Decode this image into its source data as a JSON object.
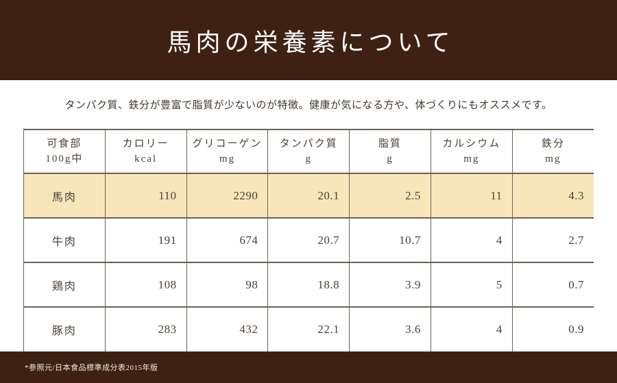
{
  "header": {
    "title": "馬肉の栄養素について"
  },
  "intro": {
    "text": "タンパク質、鉄分が豊富で脂質が少ないのが特徴。健康が気になる方や、体づくりにもオススメです。"
  },
  "table": {
    "columns": [
      {
        "label": "可食部",
        "unit": "100g中"
      },
      {
        "label": "カロリー",
        "unit": "kcal"
      },
      {
        "label": "グリコーゲン",
        "unit": "mg"
      },
      {
        "label": "タンパク質",
        "unit": "g"
      },
      {
        "label": "脂質",
        "unit": "g"
      },
      {
        "label": "カルシウム",
        "unit": "mg"
      },
      {
        "label": "鉄分",
        "unit": "mg"
      }
    ],
    "rows": [
      {
        "name": "馬肉",
        "highlight": true,
        "values": [
          "110",
          "2290",
          "20.1",
          "2.5",
          "11",
          "4.3"
        ]
      },
      {
        "name": "牛肉",
        "highlight": false,
        "values": [
          "191",
          "674",
          "20.7",
          "10.7",
          "4",
          "2.7"
        ]
      },
      {
        "name": "鶏肉",
        "highlight": false,
        "values": [
          "108",
          "98",
          "18.8",
          "3.9",
          "5",
          "0.7"
        ]
      },
      {
        "name": "豚肉",
        "highlight": false,
        "values": [
          "283",
          "432",
          "22.1",
          "3.6",
          "4",
          "0.9"
        ]
      }
    ]
  },
  "footer": {
    "source_note": "*参照元/日本食品標準成分表2015年版"
  },
  "colors": {
    "band_brown": "#3e2112",
    "row_highlight": "#f8e6ba",
    "table_border": "#6b6055",
    "table_text": "#4c4036",
    "intro_text": "#44372d",
    "title_text": "#ffffff",
    "note_text": "#f3ece4"
  },
  "chart_data": {
    "type": "table",
    "title": "馬肉の栄養素について",
    "subtitle": "タンパク質、鉄分が豊富で脂質が少ないのが特徴。健康が気になる方や、体づくりにもオススメです。",
    "columns": [
      "可食部100g中",
      "カロリー kcal",
      "グリコーゲン mg",
      "タンパク質 g",
      "脂質 g",
      "カルシウム mg",
      "鉄分 mg"
    ],
    "rows": [
      {
        "category": "馬肉",
        "values": [
          110,
          2290,
          20.1,
          2.5,
          11,
          4.3
        ],
        "highlighted": true
      },
      {
        "category": "牛肉",
        "values": [
          191,
          674,
          20.7,
          10.7,
          4,
          2.7
        ],
        "highlighted": false
      },
      {
        "category": "鶏肉",
        "values": [
          108,
          98,
          18.8,
          3.9,
          5,
          0.7
        ],
        "highlighted": false
      },
      {
        "category": "豚肉",
        "values": [
          283,
          432,
          22.1,
          3.6,
          4,
          0.9
        ],
        "highlighted": false
      }
    ],
    "source": "*参照元/日本食品標準成分表2015年版",
    "layout_hints": {
      "highlight_row": "馬肉",
      "numbers_align": "right",
      "labels_align": "center"
    }
  }
}
